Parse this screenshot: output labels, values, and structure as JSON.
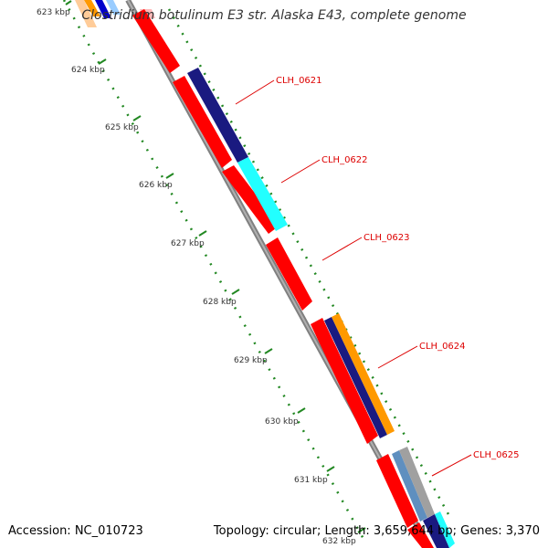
{
  "title": "Clostridium botulinum E3 str. Alaska E43, complete genome",
  "accession_text": "Accession: NC_010723",
  "summary_text": "Topology: circular; Length: 3,659,644 bp; Genes: 3,370",
  "ticks": [
    "623 kbp",
    "624 kbp",
    "625 kbp",
    "626 kbp",
    "627 kbp",
    "628 kbp",
    "629 kbp",
    "630 kbp",
    "631 kbp",
    "632 kbp"
  ],
  "gene_labels": [
    "CLH_0621",
    "CLH_0622",
    "CLH_0623",
    "CLH_0624",
    "CLH_0625"
  ],
  "colors": {
    "cds": "#ff0000",
    "cog_navy": "#1a1a80",
    "cog_cyan": "#22ffff",
    "cog_orange": "#ff9900",
    "cog_steel": "#5f8fbf",
    "backbone": "#808080",
    "tick": "#228822",
    "label": "#dd0000"
  }
}
